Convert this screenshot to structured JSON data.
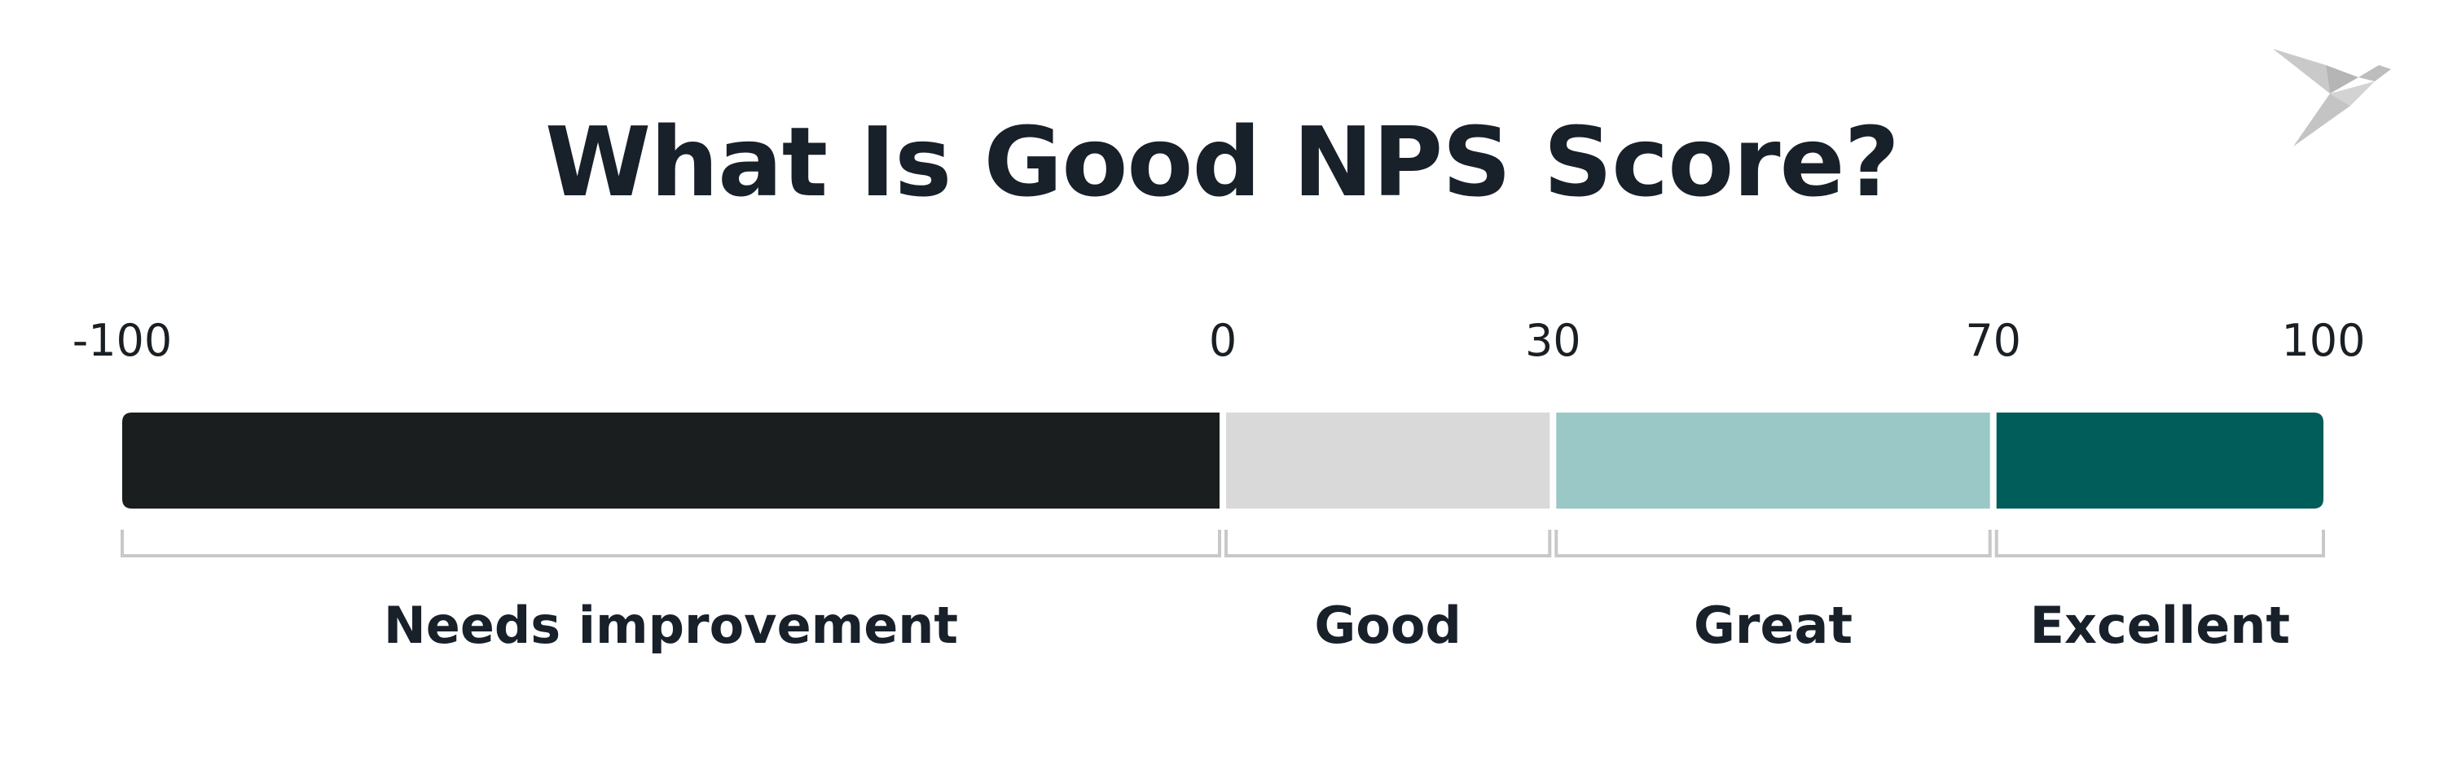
{
  "title": "What Is Good NPS Score?",
  "logo_icon": "origami-bird-icon",
  "chart_data": {
    "type": "bar",
    "orientation": "horizontal-range-scale",
    "title": "What Is Good NPS Score?",
    "xlim": [
      -100,
      100
    ],
    "ticks": [
      "-100",
      "0",
      "30",
      "70",
      "100"
    ],
    "tick_values": [
      -100,
      0,
      30,
      70,
      100
    ],
    "segments": [
      {
        "label": "Needs improvement",
        "start": -100,
        "end": 0,
        "color": "#1b1e1f"
      },
      {
        "label": "Good",
        "start": 0,
        "end": 30,
        "color": "#d9d9d9"
      },
      {
        "label": "Great",
        "start": 30,
        "end": 70,
        "color": "#99c8c6"
      },
      {
        "label": "Excellent",
        "start": 70,
        "end": 100,
        "color": "#005d5a"
      }
    ]
  }
}
